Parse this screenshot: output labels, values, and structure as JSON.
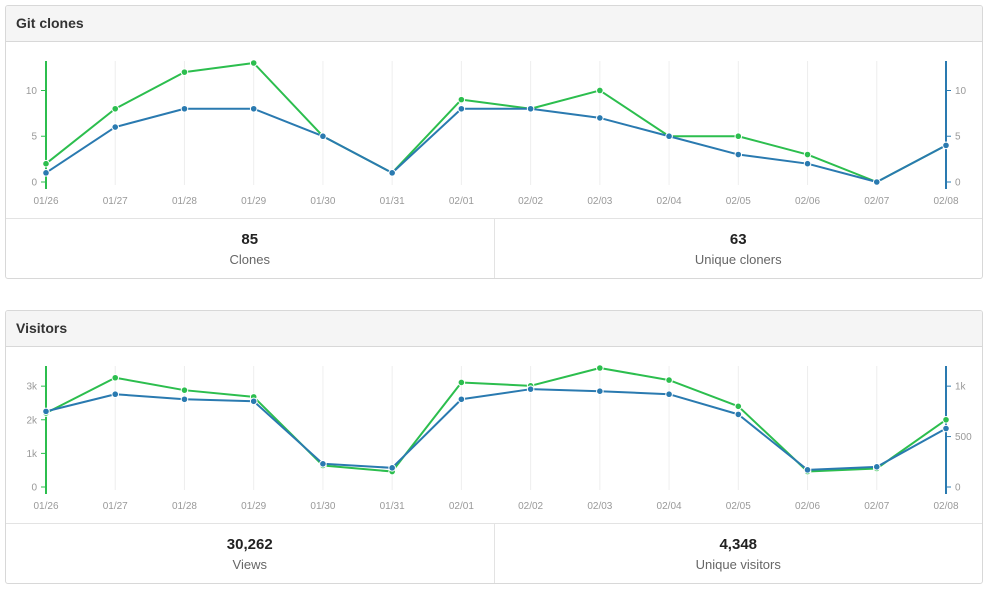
{
  "clones_panel": {
    "title": "Git clones",
    "stats": [
      {
        "value": "85",
        "label": "Clones"
      },
      {
        "value": "63",
        "label": "Unique cloners"
      }
    ]
  },
  "visitors_panel": {
    "title": "Visitors",
    "stats": [
      {
        "value": "30,262",
        "label": "Views"
      },
      {
        "value": "4,348",
        "label": "Unique visitors"
      }
    ]
  },
  "colors": {
    "green": "#2cbe4e",
    "blue": "#2a7ab0",
    "grid": "#eeeeee",
    "tick": "#999999"
  },
  "chart_data": [
    {
      "type": "line",
      "categories": [
        "01/26",
        "01/27",
        "01/28",
        "01/29",
        "01/30",
        "01/31",
        "02/01",
        "02/02",
        "02/03",
        "02/04",
        "02/05",
        "02/06",
        "02/07",
        "02/08"
      ],
      "series": [
        {
          "axis": "left",
          "color": "#2cbe4e",
          "values": [
            2,
            8,
            12,
            13,
            5,
            1,
            9,
            8,
            10,
            5,
            5,
            3,
            0,
            4
          ]
        },
        {
          "axis": "right",
          "color": "#2a7ab0",
          "values": [
            1,
            6,
            8,
            8,
            5,
            1,
            8,
            8,
            7,
            5,
            3,
            2,
            0,
            4
          ]
        }
      ],
      "left_axis": {
        "ticks": [
          "0",
          "5",
          "10"
        ],
        "tick_values": [
          0,
          5,
          10
        ],
        "ylim": [
          0,
          13
        ]
      },
      "right_axis": {
        "ticks": [
          "0",
          "5",
          "10"
        ],
        "tick_values": [
          0,
          5,
          10
        ],
        "ylim": [
          0,
          13
        ]
      },
      "grid": "vertical"
    },
    {
      "type": "line",
      "categories": [
        "01/26",
        "01/27",
        "01/28",
        "01/29",
        "01/30",
        "01/31",
        "02/01",
        "02/02",
        "02/03",
        "02/04",
        "02/05",
        "02/06",
        "02/07",
        "02/08"
      ],
      "series": [
        {
          "axis": "left",
          "color": "#2cbe4e",
          "values": [
            2200,
            3250,
            2880,
            2680,
            640,
            460,
            3110,
            3010,
            3540,
            3180,
            2400,
            460,
            550,
            2000
          ]
        },
        {
          "axis": "right",
          "color": "#2a7ab0",
          "values": [
            750,
            920,
            870,
            850,
            230,
            190,
            870,
            970,
            950,
            920,
            720,
            170,
            200,
            580
          ]
        }
      ],
      "left_axis": {
        "ticks": [
          "0",
          "1k",
          "2k",
          "3k"
        ],
        "tick_values": [
          0,
          1000,
          2000,
          3000
        ],
        "ylim": [
          0,
          3540
        ]
      },
      "right_axis": {
        "ticks": [
          "0",
          "500",
          "1k"
        ],
        "tick_values": [
          0,
          500,
          1000
        ],
        "ylim": [
          0,
          1180
        ]
      },
      "grid": "vertical"
    }
  ]
}
